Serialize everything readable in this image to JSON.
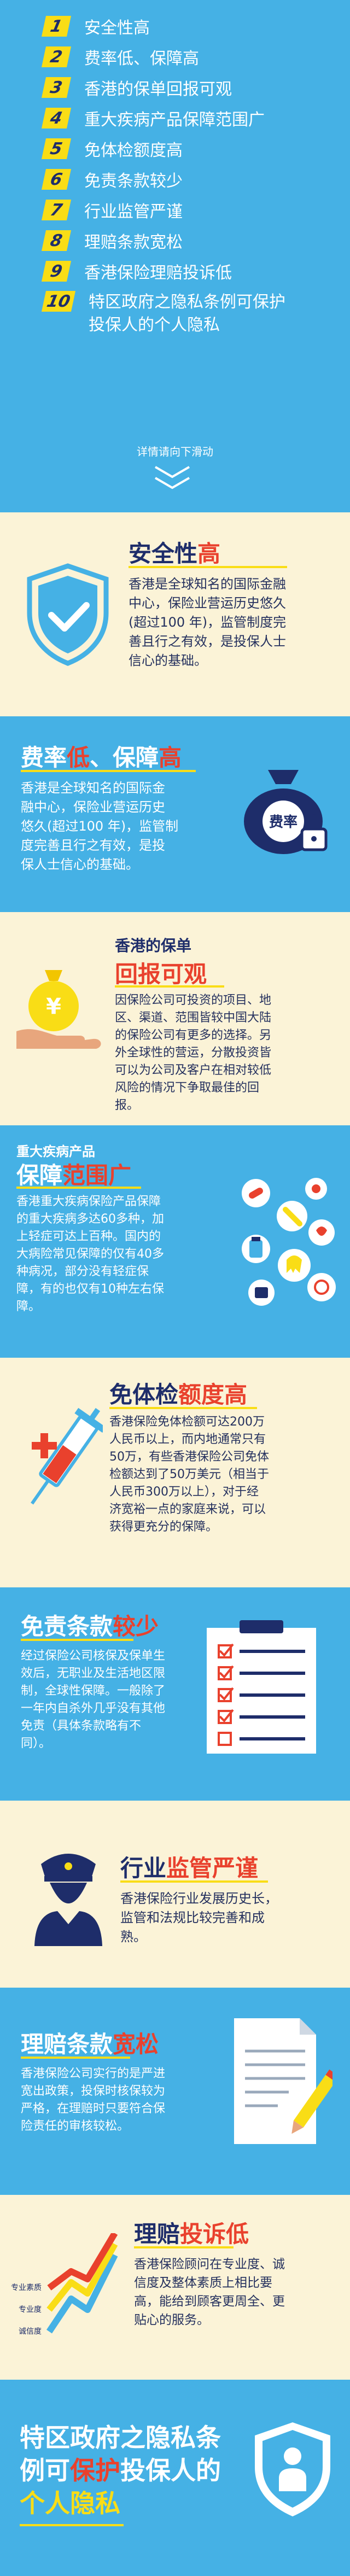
{
  "index": {
    "items": [
      {
        "num": "1",
        "label": "安全性高"
      },
      {
        "num": "2",
        "label": "费率低、保障高"
      },
      {
        "num": "3",
        "label": "香港的保单回报可观"
      },
      {
        "num": "4",
        "label": "重大疾病产品保障范围广"
      },
      {
        "num": "5",
        "label": "免体检额度高"
      },
      {
        "num": "6",
        "label": "免责条款较少"
      },
      {
        "num": "7",
        "label": "行业监管严谨"
      },
      {
        "num": "8",
        "label": "理赔条款宽松"
      },
      {
        "num": "9",
        "label": "香港保险理赔投诉低"
      },
      {
        "num": "10",
        "label_line1": "特区政府之隐私条例可保护",
        "label_line2": "投保人的个人隐私"
      }
    ],
    "more_hint": "详情请向下滑动"
  },
  "sections": {
    "safety": {
      "title_a": "安全性",
      "title_b": "高",
      "text": [
        "香港是全球知名的国际金融",
        "中心，保险业营运历史悠久",
        "(超过100 年)，监管制度完",
        "善且行之有效，是投保人士",
        "信心的基础。"
      ]
    },
    "rate": {
      "title_a": "费率",
      "title_b": "低",
      "title_c": "、保障",
      "title_d": "高",
      "text": [
        "香港是全球知名的国际金",
        "融中心，保险业营运历史",
        "悠久(超过100 年)，监管制",
        "度完善且行之有效，是投",
        "保人士信心的基础。"
      ],
      "badge": "费率"
    },
    "return": {
      "title_small": "香港的保单",
      "title_big": "回报可观",
      "text": [
        "因保险公司可投资的项目、地",
        "区、渠道、范围皆较中国大陆",
        "的保险公司有更多的选择。另",
        "外全球性的营运，分散投资皆",
        "可以为公司及客户在相对较低",
        "风险的情况下争取最佳的回",
        "报。"
      ]
    },
    "illness": {
      "title_small": "重大疾病产品",
      "title_a": "保障",
      "title_b": "范围广",
      "text": [
        "香港重大疾病保险产品保障",
        "的重大疾病多达60多种，加",
        "上轻症可达上百种。国内的",
        "大病险常见保障的仅有40多",
        "种病况，部分没有轻症保",
        "障，有的也仅有10种左右保",
        "障。"
      ]
    },
    "exam": {
      "title_a": "免体检",
      "title_b": "额度高",
      "text": [
        "香港保险免体检额可达200万",
        "人民币以上，而内地通常只有",
        "50万，有些香港保险公司免体",
        "检额达到了50万美元（相当于",
        "人民币300万以上），对于经",
        "济宽裕一点的家庭来说，可以",
        "获得更充分的保障。"
      ]
    },
    "exempt": {
      "title_a": "免责条款",
      "title_b": "较少",
      "text": [
        "经过保险公司核保及保单生",
        "效后，无职业及生活地区限",
        "制，全球性保障。一般除了",
        "一年内自杀外几乎没有其他",
        "免责（具体条款略有不",
        "同）。"
      ]
    },
    "regulate": {
      "title_a": "行业",
      "title_b": "监管严谨",
      "text": [
        "香港保险行业发展历史长，",
        "监管和法规比较完善和成",
        "熟。"
      ]
    },
    "claims": {
      "title_a": "理赔条款",
      "title_b": "宽松",
      "text": [
        "香港保险公司实行的是严进",
        "宽出政策，投保时核保较为",
        "严格，在理赔时只要符合保",
        "险责任的审核较松。"
      ]
    },
    "complaint": {
      "title_a": "理赔",
      "title_b": "投诉低",
      "text": [
        "香港保险顾问在专业度、诚",
        "信度及整体素质上相比要",
        "高，能给到顾客更周全、更",
        "贴心的服务。"
      ],
      "chart_labels": [
        "专业素质",
        "专业度",
        "诚信度"
      ]
    },
    "privacy": {
      "line1": "特区政府之隐私条",
      "line2": "例可",
      "line2_acc": "保护",
      "line2_end": "投保人的",
      "line3": "个人隐私"
    }
  },
  "colors": {
    "blue": "#45b1e5",
    "cream": "#fbf3d7",
    "yellow": "#f9dd16",
    "navy": "#1e2d6a",
    "red": "#e9412d"
  }
}
